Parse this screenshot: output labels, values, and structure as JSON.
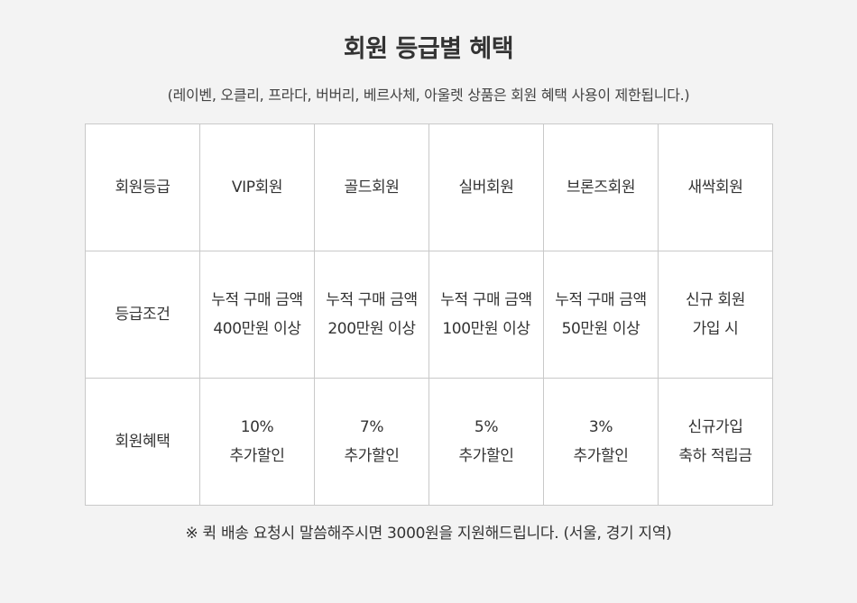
{
  "header": {
    "title": "회원 등급별 혜택",
    "subtitle": "(레이벤, 오클리, 프라다, 버버리, 베르사체, 아울렛 상품은 회원 혜택 사용이 제한됩니다.)"
  },
  "table": {
    "header_row": {
      "label": "회원등급",
      "grades": [
        "VIP회원",
        "골드회원",
        "실버회원",
        "브론즈회원",
        "새싹회원"
      ]
    },
    "condition_row": {
      "label": "등급조건",
      "cells": [
        {
          "line1": "누적 구매 금액",
          "line2": "400만원 이상"
        },
        {
          "line1": "누적 구매 금액",
          "line2": "200만원 이상"
        },
        {
          "line1": "누적 구매 금액",
          "line2": "100만원 이상"
        },
        {
          "line1": "누적 구매 금액",
          "line2": "50만원 이상"
        },
        {
          "line1": "신규 회원",
          "line2": "가입 시"
        }
      ]
    },
    "benefit_row": {
      "label": "회원혜택",
      "cells": [
        {
          "line1": "10%",
          "line2": "추가할인"
        },
        {
          "line1": "7%",
          "line2": "추가할인"
        },
        {
          "line1": "5%",
          "line2": "추가할인"
        },
        {
          "line1": "3%",
          "line2": "추가할인"
        },
        {
          "line1": "신규가입",
          "line2": "축하 적립금"
        }
      ]
    }
  },
  "footer": {
    "note": "※ 퀵 배송 요청시 말씀해주시면 3000원을 지원해드립니다. (서울, 경기 지역)"
  }
}
